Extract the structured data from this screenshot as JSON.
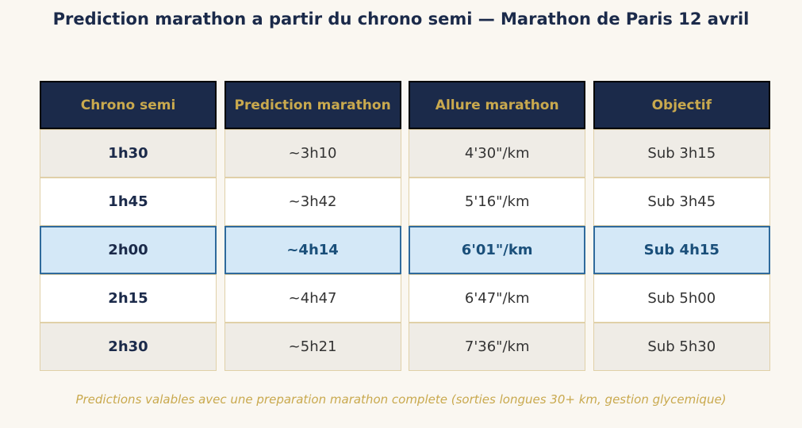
{
  "title": "Prediction marathon a partir du chrono semi — Marathon de Paris 12 avril",
  "table": {
    "header": [
      "Chrono semi",
      "Prediction marathon",
      "Allure marathon",
      "Objectif"
    ],
    "rows": [
      [
        "1h30",
        "~3h10",
        "4'30\"/km",
        "Sub 3h15"
      ],
      [
        "1h45",
        "~3h42",
        "5'16\"/km",
        "Sub 3h45"
      ],
      [
        "2h00",
        "~4h14",
        "6'01\"/km",
        "Sub 4h15"
      ],
      [
        "2h15",
        "~4h47",
        "6'47\"/km",
        "Sub 5h00"
      ],
      [
        "2h30",
        "~5h21",
        "7'36\"/km",
        "Sub 5h30"
      ]
    ]
  },
  "footnote": "Predictions valables avec une preparation marathon complete (sorties longues 30+ km, gestion glycemique)"
}
